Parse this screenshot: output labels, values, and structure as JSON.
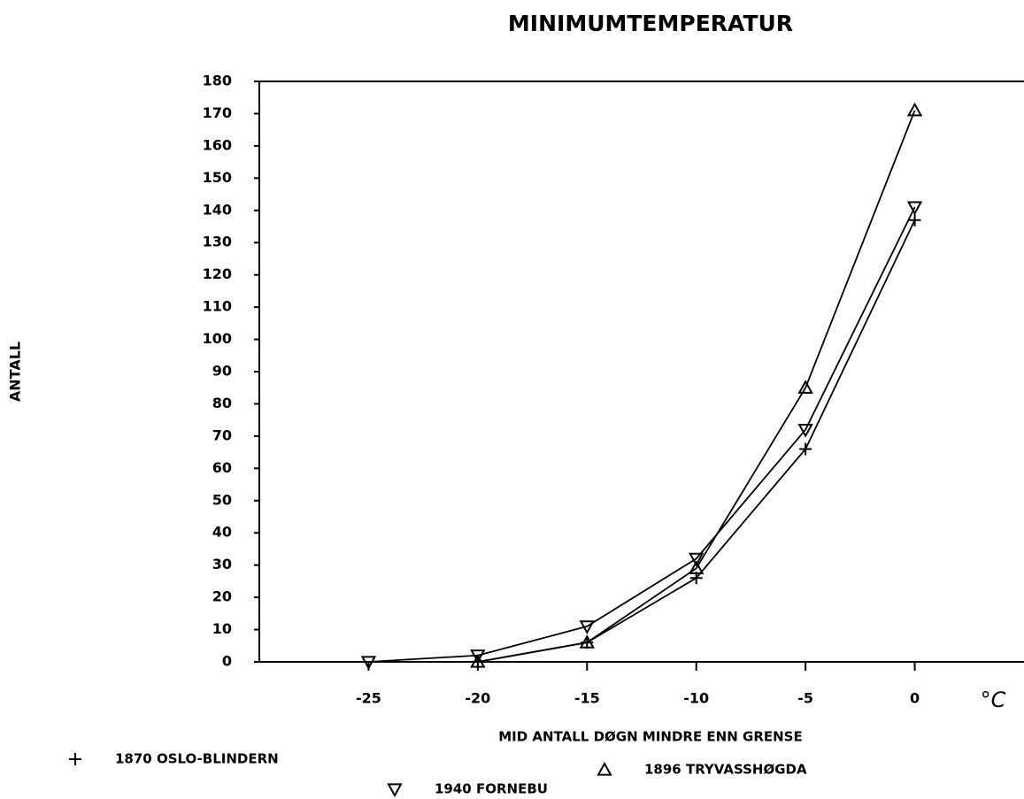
{
  "chart_data": {
    "type": "line",
    "title": "MINIMUMTEMPERATUR",
    "x_label": "MID ANTALL DØGN MINDRE ENN GRENSE",
    "y_label": "ANTALL",
    "unit_label": "°C",
    "x": [
      -25,
      -20,
      -15,
      -10,
      -5,
      0
    ],
    "xlim": [
      -30,
      5
    ],
    "xticks": [
      -25,
      -20,
      -15,
      -10,
      -5,
      0
    ],
    "ylim": [
      0,
      180
    ],
    "yticks": [
      0,
      10,
      20,
      30,
      40,
      50,
      60,
      70,
      80,
      90,
      100,
      110,
      120,
      130,
      140,
      150,
      160,
      170,
      180
    ],
    "grid": false,
    "series": [
      {
        "name": "1870 OSLO-BLINDERN",
        "marker": "plus",
        "color": "#000000",
        "values": [
          null,
          0,
          6,
          26,
          66,
          137
        ]
      },
      {
        "name": "1896 TRYVASSHØGDA",
        "marker": "triangle-up",
        "color": "#000000",
        "values": [
          null,
          0,
          6,
          29,
          85,
          171
        ]
      },
      {
        "name": "1940 FORNEBU",
        "marker": "triangle-down",
        "color": "#000000",
        "values": [
          0,
          2,
          11,
          32,
          72,
          141
        ]
      }
    ]
  }
}
